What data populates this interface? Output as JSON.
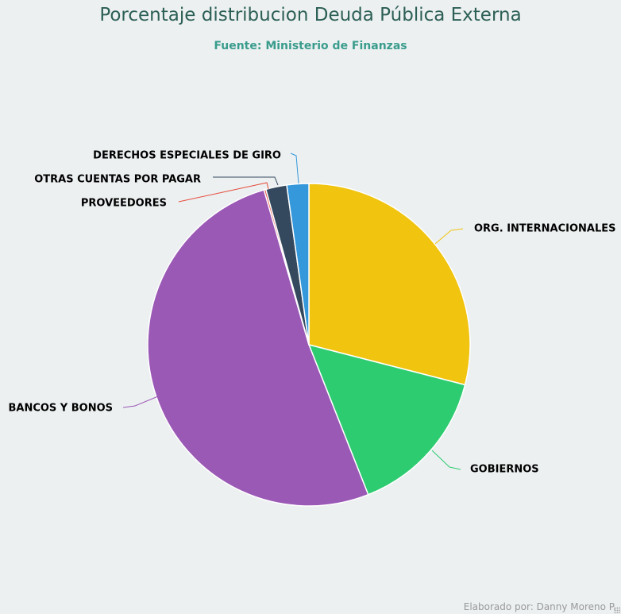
{
  "chart_data": {
    "type": "pie",
    "title": "Porcentaje distribucion Deuda Pública Externa",
    "subtitle": "Fuente: Ministerio de Finanzas",
    "units": "%",
    "slices": [
      {
        "label": "ORG. INTERNACIONALES",
        "value": 29.0,
        "color": "#f1c40f"
      },
      {
        "label": "GOBIERNOS",
        "value": 15.0,
        "color": "#2ecc71"
      },
      {
        "label": "BANCOS Y BONOS",
        "value": 51.5,
        "color": "#9b59b6"
      },
      {
        "label": "PROVEEDORES",
        "value": 0.2,
        "color": "#e74c3c"
      },
      {
        "label": "OTRAS CUENTAS POR PAGAR",
        "value": 2.1,
        "color": "#34495e"
      },
      {
        "label": "DERECHOS ESPECIALES DE GIRO",
        "value": 2.2,
        "color": "#3498db"
      }
    ]
  },
  "credits": "Elaborado por: Danny Moreno P."
}
